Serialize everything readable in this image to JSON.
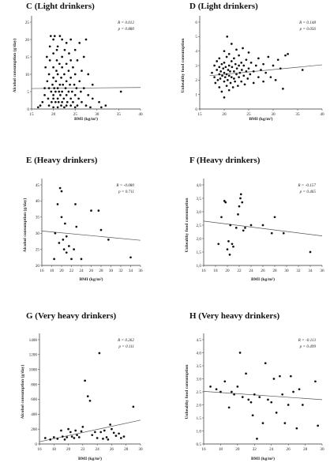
{
  "chart_data": [
    {
      "type": "scatter",
      "title": "C (Light drinkers)",
      "xlabel": "BMI (kg/m²)",
      "ylabel": "Alcohol consumption (g/day)",
      "stats": {
        "r": "R = 0.012",
        "p": "p = 0.880"
      },
      "xlim": [
        15,
        40
      ],
      "ylim": [
        0,
        25
      ],
      "xticks": [
        15,
        20,
        25,
        30,
        35,
        40
      ],
      "yticks": [
        0,
        5,
        10,
        15,
        20,
        25
      ],
      "regression": [
        [
          15,
          5.9
        ],
        [
          40,
          6.2
        ]
      ],
      "points": [
        [
          16.5,
          0.5
        ],
        [
          17,
          1
        ],
        [
          17.5,
          2
        ],
        [
          18,
          4
        ],
        [
          18,
          6
        ],
        [
          18.2,
          12
        ],
        [
          18.5,
          15
        ],
        [
          18.6,
          8
        ],
        [
          18.8,
          3
        ],
        [
          19,
          1
        ],
        [
          19,
          6
        ],
        [
          19,
          10
        ],
        [
          19.2,
          14
        ],
        [
          19.2,
          18
        ],
        [
          19.4,
          21
        ],
        [
          19.5,
          5
        ],
        [
          19.6,
          2
        ],
        [
          19.8,
          7
        ],
        [
          20,
          0.5
        ],
        [
          20,
          3
        ],
        [
          20,
          4
        ],
        [
          20,
          9
        ],
        [
          20,
          12
        ],
        [
          20,
          16
        ],
        [
          20,
          20
        ],
        [
          20.2,
          6
        ],
        [
          20.3,
          21
        ],
        [
          20.5,
          2
        ],
        [
          20.5,
          5
        ],
        [
          20.6,
          8
        ],
        [
          20.7,
          11
        ],
        [
          20.8,
          14
        ],
        [
          20.8,
          17
        ],
        [
          21,
          0.5
        ],
        [
          21,
          3
        ],
        [
          21,
          6
        ],
        [
          21,
          10
        ],
        [
          21,
          18
        ],
        [
          21.2,
          2
        ],
        [
          21.3,
          5
        ],
        [
          21.4,
          13
        ],
        [
          21.5,
          7
        ],
        [
          21.5,
          21
        ],
        [
          21.6,
          4
        ],
        [
          21.8,
          1
        ],
        [
          21.8,
          9
        ],
        [
          22,
          2
        ],
        [
          22,
          5
        ],
        [
          22,
          12
        ],
        [
          22,
          15
        ],
        [
          22,
          20
        ],
        [
          22.2,
          7
        ],
        [
          22.4,
          3
        ],
        [
          22.5,
          0.5
        ],
        [
          22.5,
          10
        ],
        [
          22.6,
          17
        ],
        [
          22.8,
          6
        ],
        [
          23,
          1
        ],
        [
          23,
          4
        ],
        [
          23,
          8
        ],
        [
          23,
          13
        ],
        [
          23,
          19
        ],
        [
          23.2,
          2
        ],
        [
          23.5,
          5
        ],
        [
          23.5,
          11
        ],
        [
          23.6,
          16
        ],
        [
          23.8,
          7
        ],
        [
          24,
          1
        ],
        [
          24,
          3
        ],
        [
          24,
          9
        ],
        [
          24,
          14
        ],
        [
          24,
          20
        ],
        [
          24.3,
          5
        ],
        [
          24.5,
          2
        ],
        [
          24.5,
          12
        ],
        [
          24.8,
          7
        ],
        [
          25,
          0.5
        ],
        [
          25,
          4
        ],
        [
          25,
          10
        ],
        [
          25,
          17
        ],
        [
          25.3,
          6
        ],
        [
          25.5,
          1
        ],
        [
          25.5,
          14
        ],
        [
          25.8,
          3
        ],
        [
          26,
          8
        ],
        [
          26,
          19
        ],
        [
          26.3,
          5
        ],
        [
          26.5,
          2
        ],
        [
          26.5,
          11
        ],
        [
          27,
          6
        ],
        [
          27,
          15
        ],
        [
          27.5,
          1
        ],
        [
          27.5,
          20
        ],
        [
          28,
          4
        ],
        [
          28,
          10
        ],
        [
          28.5,
          0.5
        ],
        [
          29,
          3
        ],
        [
          29,
          7
        ],
        [
          30.5,
          2
        ],
        [
          31,
          0.5
        ],
        [
          32,
          1
        ],
        [
          35.5,
          5
        ]
      ]
    },
    {
      "type": "scatter",
      "title": "D (Light drinkers)",
      "xlabel": "BMI (kg/m²)",
      "ylabel": "Unhealthy food consumption",
      "stats": {
        "r": "R = 0.148",
        "p": "p = 0.056"
      },
      "xlim": [
        15,
        40
      ],
      "ylim": [
        0,
        6
      ],
      "xticks": [
        15,
        20,
        25,
        30,
        35,
        40
      ],
      "yticks": [
        0,
        1,
        2,
        3,
        4,
        5,
        6
      ],
      "regression": [
        [
          17,
          2.3
        ],
        [
          40,
          3.05
        ]
      ],
      "points": [
        [
          17.5,
          2.5
        ],
        [
          18,
          2.2
        ],
        [
          18,
          3
        ],
        [
          18.2,
          1.8
        ],
        [
          18.5,
          2.7
        ],
        [
          18.5,
          3.3
        ],
        [
          18.7,
          2
        ],
        [
          19,
          1.5
        ],
        [
          19,
          2.4
        ],
        [
          19,
          2.9
        ],
        [
          19,
          3.5
        ],
        [
          19.2,
          2.1
        ],
        [
          19.3,
          2.6
        ],
        [
          19.5,
          1.2
        ],
        [
          19.5,
          3.1
        ],
        [
          19.6,
          2.3
        ],
        [
          19.8,
          2.8
        ],
        [
          20,
          0.8
        ],
        [
          20,
          1.9
        ],
        [
          20,
          2.5
        ],
        [
          20,
          3.2
        ],
        [
          20,
          4
        ],
        [
          20.2,
          2.2
        ],
        [
          20.3,
          2.9
        ],
        [
          20.5,
          1.6
        ],
        [
          20.5,
          2.4
        ],
        [
          20.5,
          3.6
        ],
        [
          20.6,
          5
        ],
        [
          20.7,
          2
        ],
        [
          20.8,
          2.7
        ],
        [
          21,
          1.3
        ],
        [
          21,
          2.3
        ],
        [
          21,
          3
        ],
        [
          21,
          3.8
        ],
        [
          21.2,
          2.6
        ],
        [
          21.3,
          1.8
        ],
        [
          21.5,
          2.2
        ],
        [
          21.5,
          3.3
        ],
        [
          21.5,
          4.5
        ],
        [
          21.6,
          2.9
        ],
        [
          21.8,
          1.5
        ],
        [
          22,
          2.1
        ],
        [
          22,
          2.6
        ],
        [
          22,
          3.5
        ],
        [
          22.2,
          1.9
        ],
        [
          22.3,
          3.1
        ],
        [
          22.5,
          2.4
        ],
        [
          22.5,
          4.1
        ],
        [
          22.6,
          2.8
        ],
        [
          22.8,
          1.6
        ],
        [
          23,
          2.2
        ],
        [
          23,
          3
        ],
        [
          23,
          3.7
        ],
        [
          23.2,
          2.5
        ],
        [
          23.5,
          1.9
        ],
        [
          23.5,
          3.2
        ],
        [
          23.6,
          2.7
        ],
        [
          23.8,
          4.2
        ],
        [
          24,
          2.3
        ],
        [
          24,
          3
        ],
        [
          24.2,
          1.7
        ],
        [
          24.5,
          2.6
        ],
        [
          24.5,
          3.4
        ],
        [
          24.8,
          2.1
        ],
        [
          25,
          2.8
        ],
        [
          25,
          3.9
        ],
        [
          25.3,
          2.4
        ],
        [
          25.5,
          3.2
        ],
        [
          26,
          2.6
        ],
        [
          26,
          1.8
        ],
        [
          26.5,
          3
        ],
        [
          27,
          2.2
        ],
        [
          27,
          3.5
        ],
        [
          27.5,
          2.7
        ],
        [
          28,
          1.9
        ],
        [
          28,
          3.1
        ],
        [
          28.5,
          2.5
        ],
        [
          29,
          3.6
        ],
        [
          29.5,
          2.2
        ],
        [
          30,
          3
        ],
        [
          30.5,
          2
        ],
        [
          31,
          3.4
        ],
        [
          31.5,
          2.8
        ],
        [
          32,
          1.4
        ],
        [
          32.5,
          3.7
        ],
        [
          33,
          3.8
        ],
        [
          36,
          2.7
        ]
      ]
    },
    {
      "type": "scatter",
      "title": "E (Heavy drinkers)",
      "xlabel": "BMI (kg/m²)",
      "ylabel": "Alcohol consumption (g/day)",
      "stats": {
        "r": "R = -0.080",
        "p": "p = 0.711"
      },
      "xlim": [
        16,
        36
      ],
      "ylim": [
        20,
        45
      ],
      "xticks": [
        16,
        18,
        20,
        22,
        24,
        26,
        28,
        30,
        32,
        34,
        36
      ],
      "yticks": [
        20,
        25,
        30,
        35,
        40,
        45
      ],
      "regression": [
        [
          16,
          30.7
        ],
        [
          36,
          27.8
        ]
      ],
      "points": [
        [
          18.5,
          22
        ],
        [
          18.7,
          30
        ],
        [
          19.2,
          39
        ],
        [
          19.5,
          27
        ],
        [
          19.7,
          44
        ],
        [
          20,
          43
        ],
        [
          20,
          35
        ],
        [
          20.3,
          28
        ],
        [
          20.5,
          25
        ],
        [
          20.7,
          33
        ],
        [
          21,
          24
        ],
        [
          21,
          29
        ],
        [
          21.5,
          26
        ],
        [
          22,
          22
        ],
        [
          22.5,
          25
        ],
        [
          22.8,
          39
        ],
        [
          23,
          32
        ],
        [
          24,
          22
        ],
        [
          26,
          37
        ],
        [
          27.5,
          37
        ],
        [
          28,
          31
        ],
        [
          29.5,
          28
        ],
        [
          34,
          22.5
        ]
      ]
    },
    {
      "type": "scatter",
      "title": "F (Heavy drinkers)",
      "xlabel": "BMI (kg/m²)",
      "ylabel": "Unhealthy food consumption",
      "stats": {
        "r": "R = -0.157",
        "p": "p = 0.465"
      },
      "xlim": [
        16,
        36
      ],
      "ylim": [
        1.0,
        4.0
      ],
      "xticks": [
        16,
        18,
        20,
        22,
        24,
        26,
        28,
        30,
        32,
        34,
        36
      ],
      "yticks": [
        1.0,
        1.5,
        2.0,
        2.5,
        3.0,
        3.5,
        4.0
      ],
      "yticklabels": [
        "1,0",
        "1,5",
        "2,0",
        "2,5",
        "3,0",
        "3,5",
        "4,0"
      ],
      "regression": [
        [
          16,
          2.65
        ],
        [
          36,
          2.1
        ]
      ],
      "points": [
        [
          18.5,
          1.8
        ],
        [
          19,
          2.8
        ],
        [
          19.5,
          3.4
        ],
        [
          19.7,
          3.35
        ],
        [
          20,
          1.6
        ],
        [
          20.2,
          1.9
        ],
        [
          20.4,
          1.4
        ],
        [
          20.5,
          2.5
        ],
        [
          20.8,
          1.8
        ],
        [
          21,
          1.7
        ],
        [
          21.5,
          2.4
        ],
        [
          21.8,
          2.9
        ],
        [
          22,
          3.2
        ],
        [
          22.2,
          3.5
        ],
        [
          22.3,
          3.65
        ],
        [
          22.5,
          3.35
        ],
        [
          22.7,
          2.3
        ],
        [
          23,
          2.4
        ],
        [
          24,
          2.5
        ],
        [
          26,
          2.5
        ],
        [
          27.5,
          2.2
        ],
        [
          28,
          2.8
        ],
        [
          29.5,
          2.2
        ],
        [
          34,
          1.5
        ]
      ]
    },
    {
      "type": "scatter",
      "title": "G (Very heavy drinkers)",
      "xlabel": "BMI (kg/m²)",
      "ylabel": "Alcohol consumption (g/day)",
      "stats": {
        "r": "R = 0.262",
        "p": "p = 0.111"
      },
      "xlim": [
        16,
        30
      ],
      "ylim": [
        0,
        1400
      ],
      "xticks": [
        16,
        18,
        20,
        22,
        24,
        26,
        28,
        30
      ],
      "yticks": [
        0,
        200,
        400,
        600,
        800,
        1000,
        1200,
        1400
      ],
      "regression": [
        [
          16,
          30
        ],
        [
          30,
          320
        ]
      ],
      "points": [
        [
          16.8,
          80
        ],
        [
          17.5,
          60
        ],
        [
          18,
          90
        ],
        [
          18.5,
          70
        ],
        [
          19,
          180
        ],
        [
          19.2,
          100
        ],
        [
          19.5,
          60
        ],
        [
          19.8,
          90
        ],
        [
          20,
          200
        ],
        [
          20.3,
          160
        ],
        [
          20.5,
          100
        ],
        [
          20.8,
          80
        ],
        [
          21,
          180
        ],
        [
          21.2,
          120
        ],
        [
          21.5,
          90
        ],
        [
          21.8,
          170
        ],
        [
          22,
          230
        ],
        [
          22.3,
          850
        ],
        [
          22.7,
          640
        ],
        [
          23,
          580
        ],
        [
          23.3,
          120
        ],
        [
          23.7,
          160
        ],
        [
          24,
          80
        ],
        [
          24.3,
          1220
        ],
        [
          24.5,
          160
        ],
        [
          24.8,
          70
        ],
        [
          25,
          180
        ],
        [
          25.3,
          90
        ],
        [
          25.5,
          60
        ],
        [
          25.8,
          260
        ],
        [
          26,
          200
        ],
        [
          26.3,
          150
        ],
        [
          26.6,
          110
        ],
        [
          27,
          140
        ],
        [
          27.3,
          80
        ],
        [
          27.7,
          100
        ],
        [
          29,
          500
        ]
      ]
    },
    {
      "type": "scatter",
      "title": "H (Very heavy drinkers)",
      "xlabel": "BMI (kg/m²)",
      "ylabel": "Unhealthy food consumption",
      "stats": {
        "r": "R = -0.113",
        "p": "p = 0.499"
      },
      "xlim": [
        16,
        30
      ],
      "ylim": [
        0.5,
        4.5
      ],
      "xticks": [
        16,
        18,
        20,
        22,
        24,
        26,
        28,
        30
      ],
      "yticks": [
        0.5,
        1.0,
        1.5,
        2.0,
        2.5,
        3.0,
        3.5,
        4.0,
        4.5
      ],
      "yticklabels": [
        "0.5",
        "1.0",
        "1.5",
        "2.0",
        "2.5",
        "3.0",
        "3.5",
        "4.0",
        "4.5"
      ],
      "regression": [
        [
          16,
          2.52
        ],
        [
          30,
          2.2
        ]
      ],
      "points": [
        [
          16.8,
          2.7
        ],
        [
          17.5,
          2.6
        ],
        [
          18,
          2.5
        ],
        [
          18.5,
          2.9
        ],
        [
          19,
          1.9
        ],
        [
          19.3,
          2.5
        ],
        [
          19.6,
          2.4
        ],
        [
          20,
          2.7
        ],
        [
          20.3,
          4.0
        ],
        [
          20.6,
          2.3
        ],
        [
          21,
          3.2
        ],
        [
          21.3,
          2.2
        ],
        [
          21.6,
          2.1
        ],
        [
          21.8,
          1.6
        ],
        [
          22,
          2.4
        ],
        [
          22.3,
          0.7
        ],
        [
          22.6,
          2.3
        ],
        [
          23,
          1.3
        ],
        [
          23.3,
          3.6
        ],
        [
          23.6,
          2.2
        ],
        [
          24,
          2.1
        ],
        [
          24.3,
          3.0
        ],
        [
          24.6,
          1.7
        ],
        [
          25,
          3.1
        ],
        [
          25.3,
          2.4
        ],
        [
          25.6,
          1.3
        ],
        [
          26,
          2.0
        ],
        [
          26.3,
          3.1
        ],
        [
          26.6,
          2.5
        ],
        [
          27,
          1.1
        ],
        [
          27.3,
          2.6
        ],
        [
          27.7,
          2.0
        ],
        [
          29.2,
          2.9
        ],
        [
          29.5,
          1.2
        ]
      ]
    }
  ]
}
